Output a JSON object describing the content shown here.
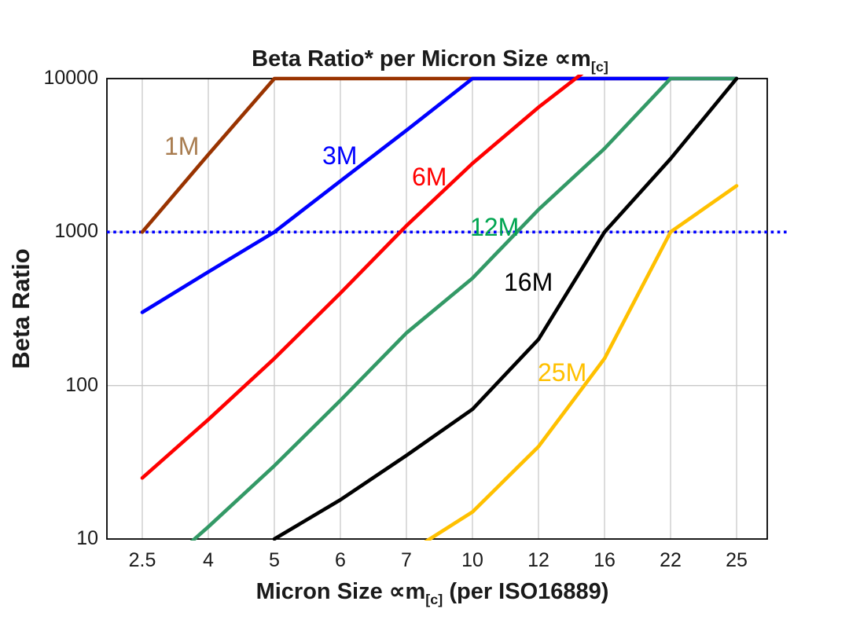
{
  "header": {
    "title_prefix": "Beta Ratio* per Micron Size ",
    "title_unit": "∝m",
    "title_sub": "[c]"
  },
  "y_axis": {
    "label": "Beta Ratio",
    "ticks": [
      "10000",
      "1000",
      "100",
      "10"
    ]
  },
  "x_axis": {
    "label_prefix": "Micron Size ",
    "label_unit": "∝m",
    "label_sub": "[c]",
    "label_suffix": " (per ISO16889)",
    "ticks": [
      "2.5",
      "4",
      "5",
      "6",
      "7",
      "10",
      "12",
      "16",
      "22",
      "25"
    ]
  },
  "chart_data": {
    "type": "line",
    "title": "Beta Ratio* per Micron Size ∝m[c]",
    "xlabel": "Micron Size ∝m[c] (per ISO16889)",
    "ylabel": "Beta Ratio",
    "x_categories": [
      2.5,
      4,
      5,
      6,
      7,
      10,
      12,
      16,
      22,
      25
    ],
    "y_scale": "log",
    "ylim": [
      10,
      10000
    ],
    "y_ticks": [
      10,
      100,
      1000,
      10000
    ],
    "grid": true,
    "legend_position": "inline-labels",
    "reference_line": {
      "y": 1000,
      "style": "dotted",
      "color": "#0000FF"
    },
    "colors": {
      "grid": "#C9C9C9",
      "frame": "#000000",
      "background": "#FFFFFF"
    },
    "series": [
      {
        "name": "1M",
        "color": "#993300",
        "label_color": "#A87C4F",
        "values": [
          1000,
          3200,
          10000,
          10000,
          10000,
          10000,
          10000,
          10000,
          10000,
          10000
        ]
      },
      {
        "name": "3M",
        "color": "#0000FF",
        "label_color": "#0000FF",
        "values": [
          300,
          550,
          1000,
          2150,
          4600,
          10000,
          10000,
          10000,
          10000,
          10000
        ]
      },
      {
        "name": "6M",
        "color": "#FF0000",
        "label_color": "#FF0000",
        "values": [
          25,
          60,
          150,
          400,
          1100,
          2800,
          6500,
          14000,
          14000,
          14000
        ]
      },
      {
        "name": "12M",
        "color": "#339966",
        "label_color": "#00A550",
        "values": [
          5,
          12,
          30,
          80,
          220,
          500,
          1400,
          3500,
          10000,
          10000
        ]
      },
      {
        "name": "16M",
        "color": "#000000",
        "label_color": "#000000",
        "values": [
          null,
          null,
          10,
          18,
          35,
          70,
          200,
          1000,
          3000,
          10000
        ]
      },
      {
        "name": "25M",
        "color": "#FFC000",
        "label_color": "#FFC000",
        "values": [
          null,
          null,
          null,
          null,
          8,
          15,
          40,
          150,
          1000,
          2000
        ]
      }
    ]
  }
}
